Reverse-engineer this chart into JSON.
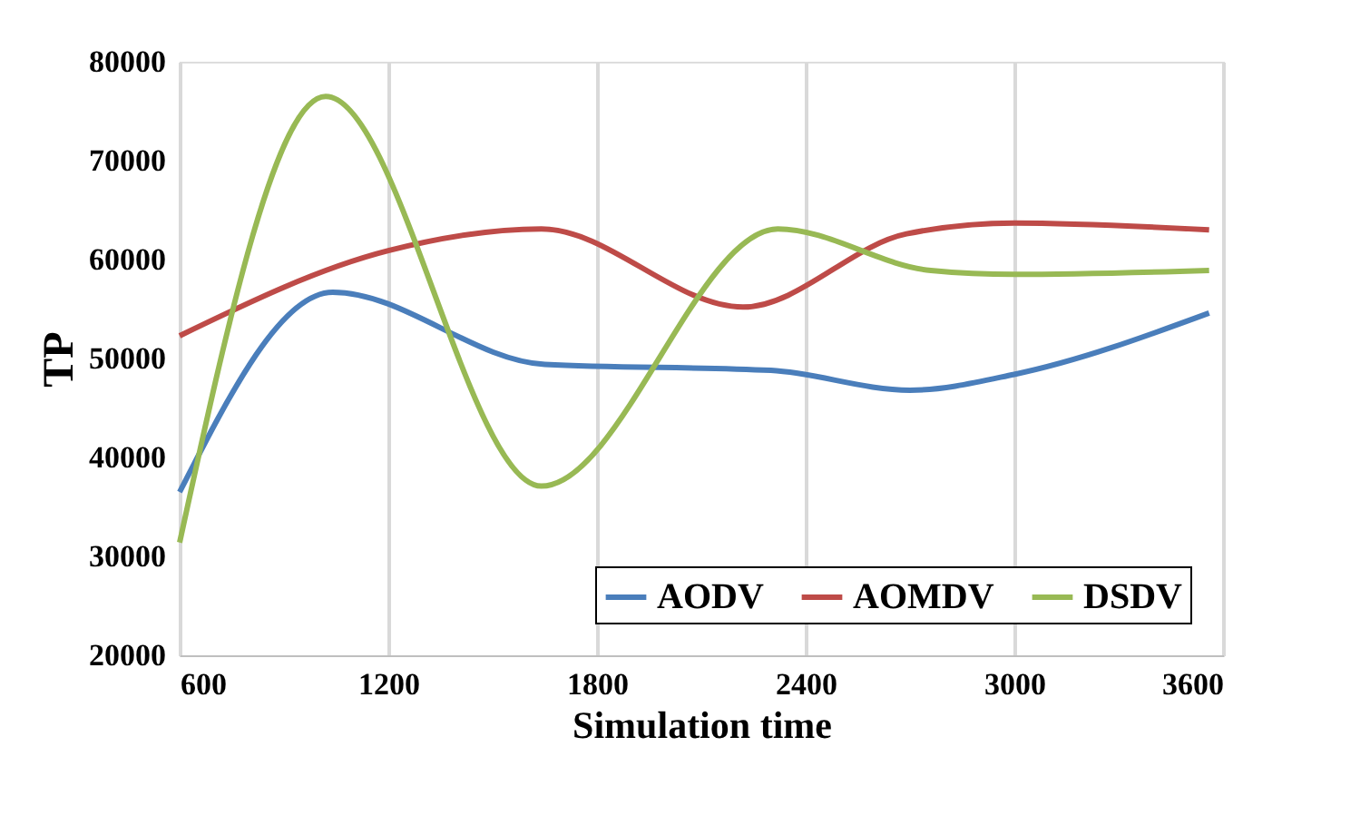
{
  "chart_data": {
    "type": "line",
    "xlabel": "Simulation time",
    "ylabel": "TP",
    "series": [
      {
        "name": "AODV",
        "color": "#4a7ebb",
        "x": [
          600,
          1040,
          1650,
          2300,
          2700,
          3000,
          3560
        ],
        "values": [
          36500,
          56700,
          49400,
          48800,
          46800,
          48400,
          54600
        ]
      },
      {
        "name": "AOMDV",
        "color": "#be4b48",
        "x": [
          600,
          1200,
          1640,
          2220,
          2690,
          3000,
          3560
        ],
        "values": [
          52300,
          60900,
          63100,
          55200,
          62600,
          63700,
          63000
        ]
      },
      {
        "name": "DSDV",
        "color": "#98b954",
        "x": [
          600,
          1020,
          1640,
          2320,
          2760,
          3000,
          3560
        ],
        "values": [
          31400,
          76500,
          37100,
          63100,
          58900,
          58500,
          58900
        ]
      }
    ],
    "xlim": [
      600,
      3600
    ],
    "xticks": [
      600,
      1200,
      1800,
      2400,
      3000,
      3600
    ],
    "ylim": [
      20000,
      80000
    ],
    "yticks": [
      20000,
      30000,
      40000,
      50000,
      60000,
      70000,
      80000
    ],
    "grid": "x",
    "legend": "bottom right",
    "marker": "none",
    "line_style": "solid"
  }
}
